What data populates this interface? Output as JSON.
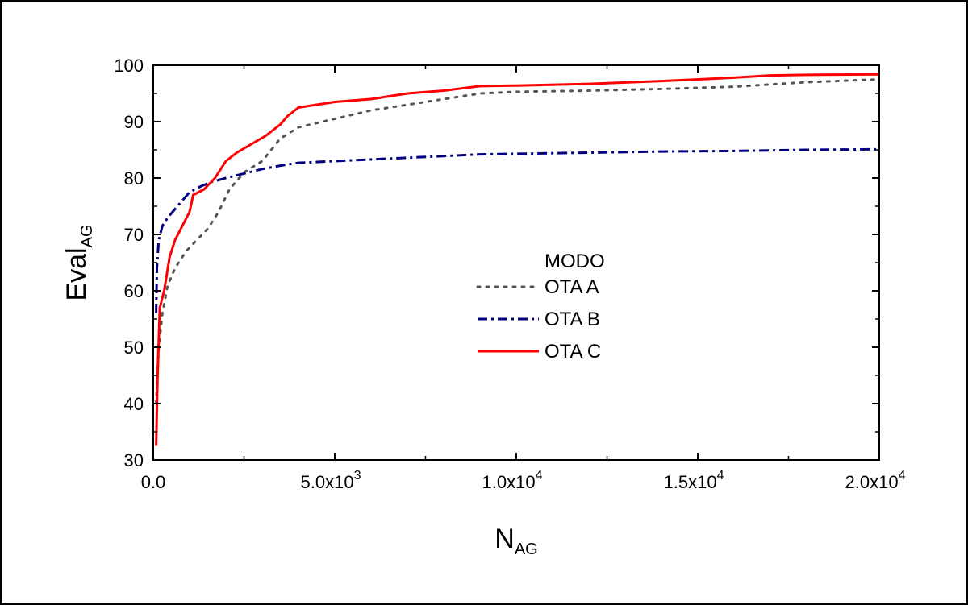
{
  "chart_data": {
    "type": "line",
    "xlabel": "N",
    "xlabel_sub": "AG",
    "ylabel": "Eval",
    "ylabel_sub": "AG",
    "xlim": [
      0,
      20000
    ],
    "ylim": [
      30,
      100
    ],
    "grid": false,
    "legend_placement": "center",
    "legend_title": "MODO",
    "x_ticks": [
      {
        "value": 0,
        "mantissa": "0.0",
        "exponent": ""
      },
      {
        "value": 5000,
        "mantissa": "5.0x10",
        "exponent": "3"
      },
      {
        "value": 10000,
        "mantissa": "1.0x10",
        "exponent": "4"
      },
      {
        "value": 15000,
        "mantissa": "1.5x10",
        "exponent": "4"
      },
      {
        "value": 20000,
        "mantissa": "2.0x10",
        "exponent": "4"
      }
    ],
    "y_ticks": [
      "30",
      "40",
      "50",
      "60",
      "70",
      "80",
      "90",
      "100"
    ],
    "series": [
      {
        "name": "OTA A",
        "color": "#555555",
        "style": "dotted",
        "x": [
          80,
          150,
          250,
          400,
          600,
          900,
          1200,
          1500,
          1800,
          2100,
          2500,
          3000,
          3500,
          4000,
          5000,
          6000,
          7000,
          8000,
          9000,
          10000,
          12000,
          14000,
          16000,
          18000,
          20000
        ],
        "y": [
          40,
          50,
          56,
          61,
          64,
          67,
          69,
          71,
          74,
          78,
          81,
          83,
          87,
          89,
          90.5,
          92,
          93,
          94,
          95,
          95.3,
          95.5,
          95.8,
          96.2,
          97,
          97.5
        ]
      },
      {
        "name": "OTA B",
        "color": "#000080",
        "style": "dashdot",
        "x": [
          80,
          100,
          150,
          250,
          400,
          600,
          800,
          1000,
          1300,
          1600,
          2000,
          2500,
          3000,
          3500,
          4000,
          5000,
          6000,
          7000,
          8000,
          9000,
          10000,
          12000,
          14000,
          16000,
          18000,
          20000
        ],
        "y": [
          56,
          64,
          69,
          71.5,
          73,
          74.5,
          76,
          77.5,
          78.5,
          79.3,
          80,
          80.8,
          81.6,
          82.2,
          82.7,
          83,
          83.3,
          83.6,
          83.9,
          84.2,
          84.3,
          84.5,
          84.7,
          84.8,
          85,
          85.1
        ]
      },
      {
        "name": "OTA C",
        "color": "#ff0000",
        "style": "solid",
        "x": [
          80,
          120,
          180,
          300,
          450,
          600,
          800,
          1000,
          1100,
          1400,
          1700,
          2000,
          2300,
          2700,
          3100,
          3500,
          3700,
          4000,
          4500,
          5000,
          6000,
          7000,
          8000,
          9000,
          10000,
          12000,
          14000,
          16000,
          17000,
          18000,
          20000
        ],
        "y": [
          32.5,
          45,
          57,
          60,
          66,
          69,
          71.5,
          74,
          77,
          78,
          80,
          83,
          84.5,
          86,
          87.5,
          89.5,
          91,
          92.5,
          93,
          93.5,
          94,
          95,
          95.5,
          96.3,
          96.4,
          96.7,
          97.2,
          97.8,
          98.2,
          98.3,
          98.4
        ]
      }
    ]
  }
}
